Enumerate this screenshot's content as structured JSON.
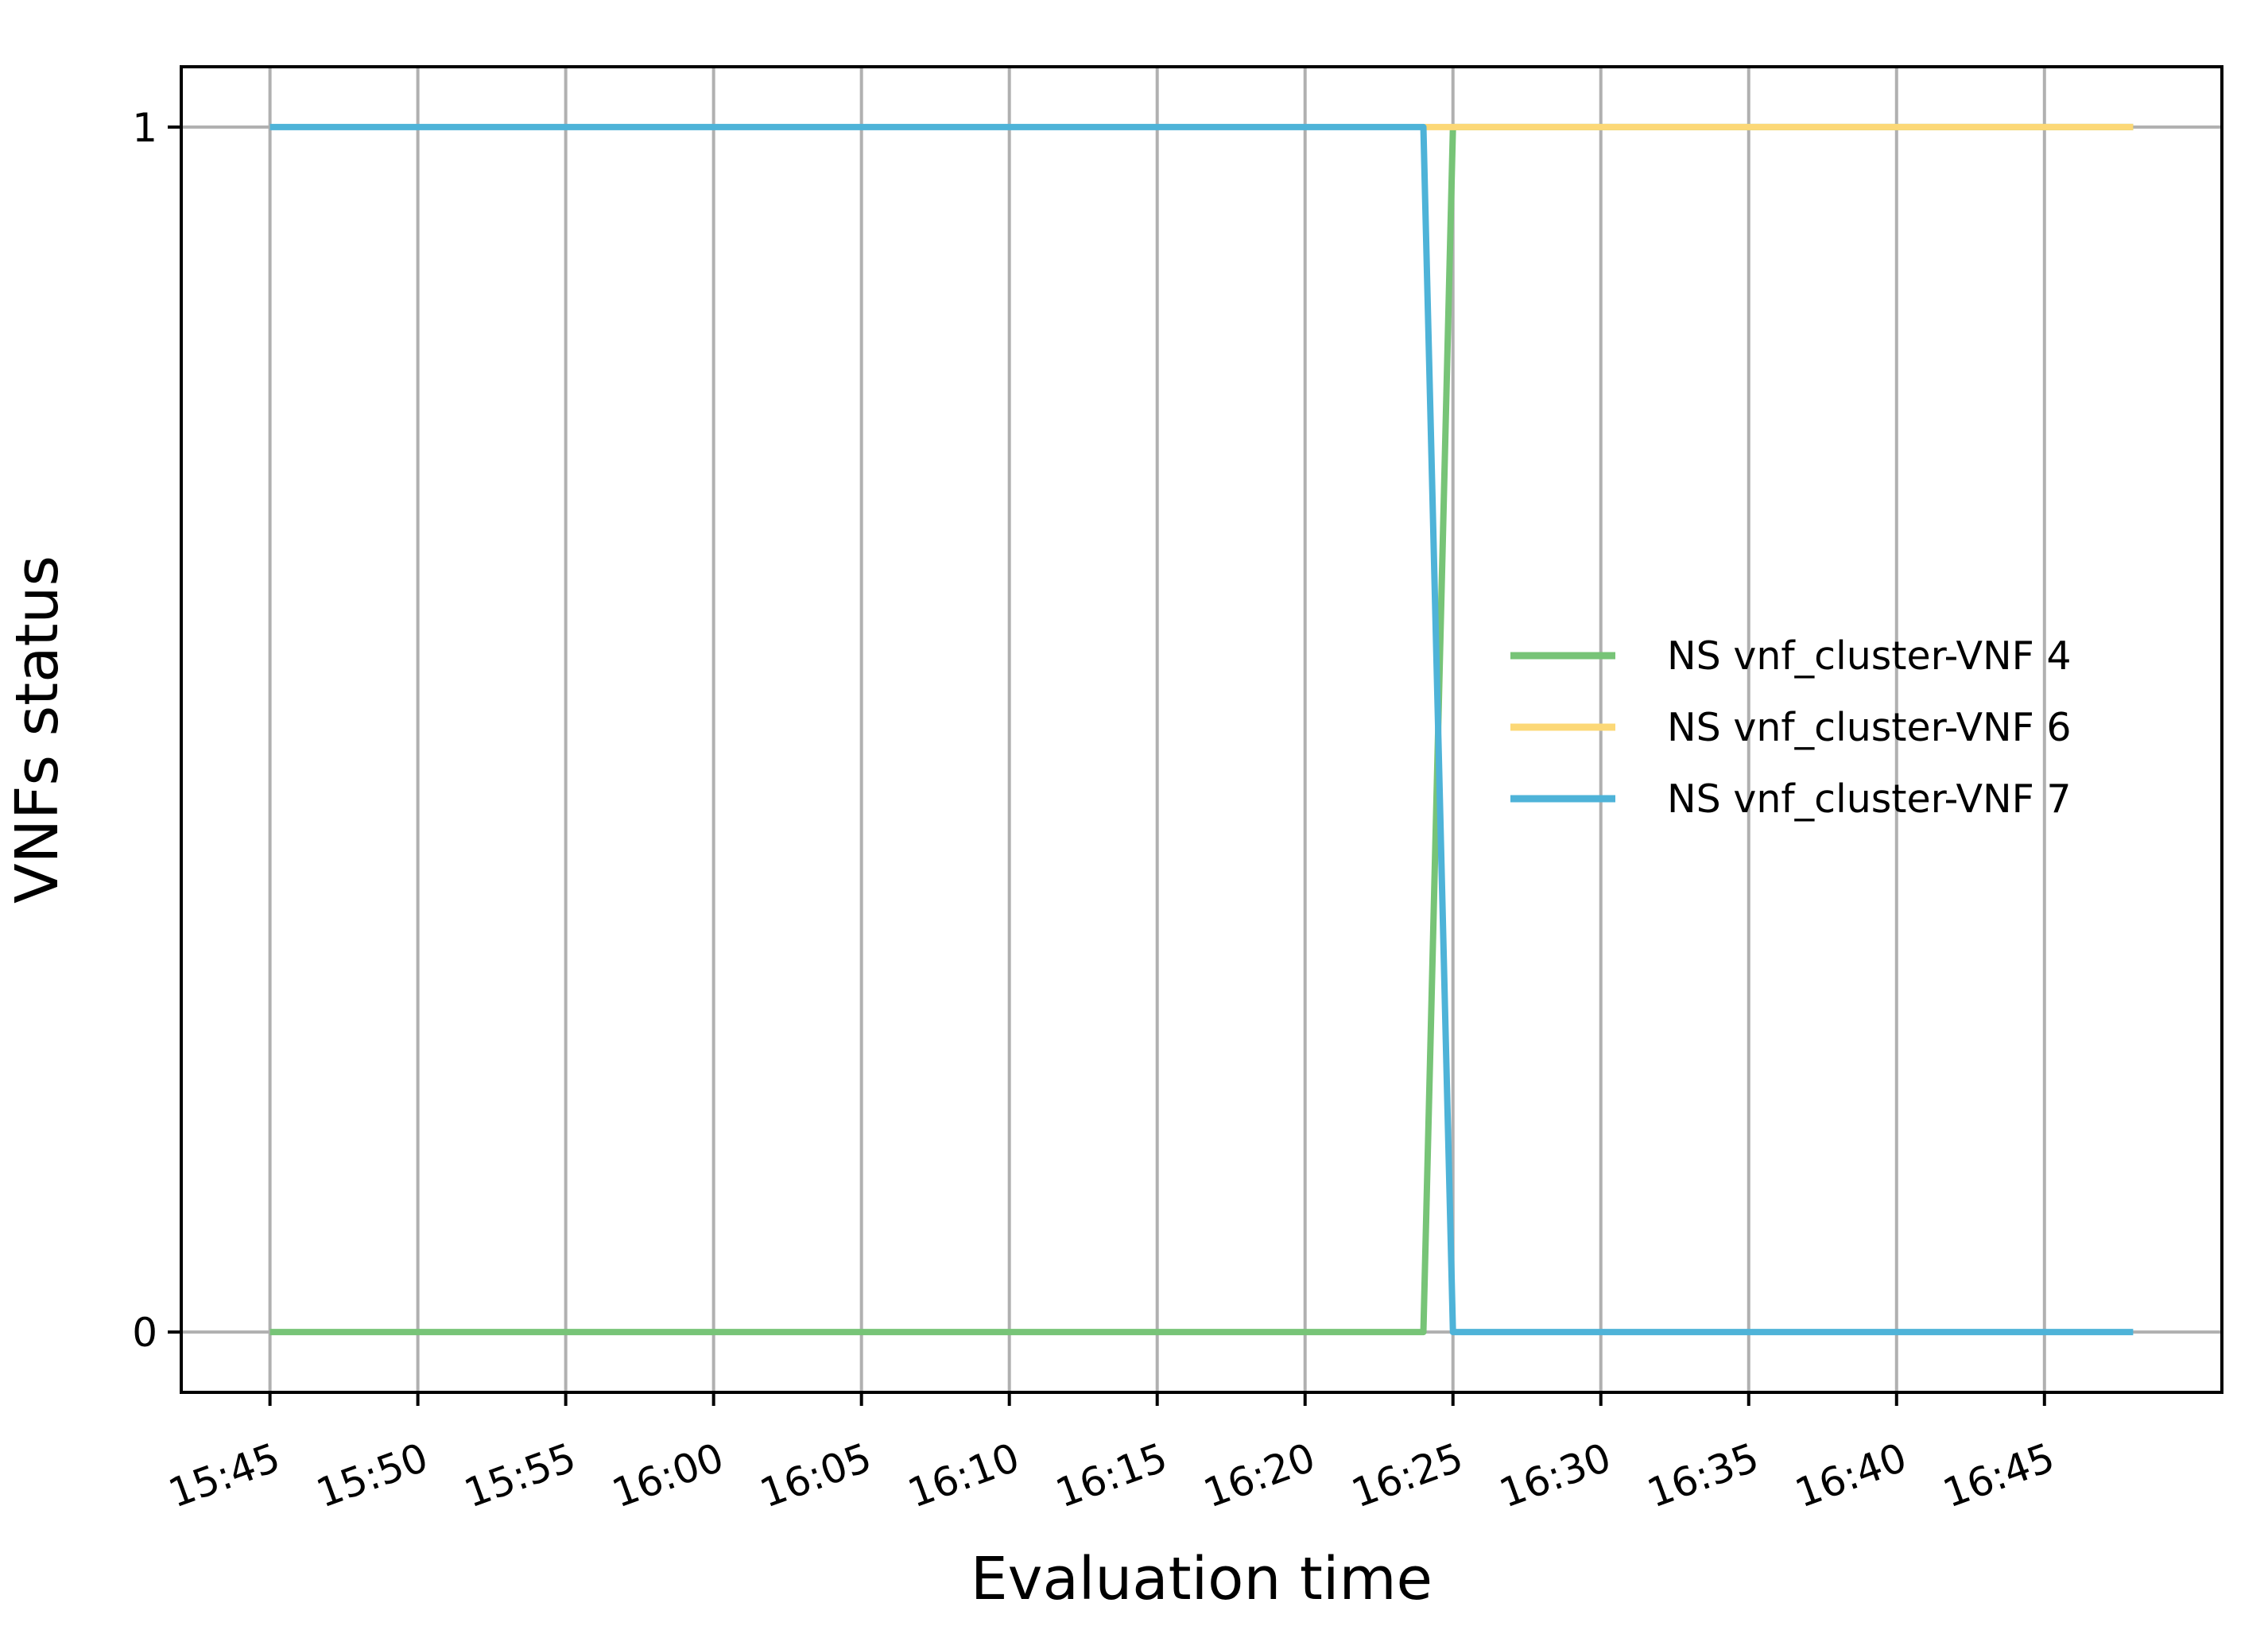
{
  "chart_data": {
    "type": "line",
    "xlabel": "Evaluation time",
    "ylabel": "VNFs status",
    "x_ticks": [
      "15:45",
      "15:50",
      "15:55",
      "16:00",
      "16:05",
      "16:10",
      "16:15",
      "16:20",
      "16:25",
      "16:30",
      "16:35",
      "16:40",
      "16:45"
    ],
    "y_ticks": [
      "0",
      "1"
    ],
    "xlim": [
      "15:42",
      "16:51"
    ],
    "ylim": [
      -0.05,
      1.05
    ],
    "grid": true,
    "legend_position": "center-right",
    "series": [
      {
        "name": "NS vnf_cluster-VNF 4",
        "color": "#77c477",
        "x": [
          "15:45",
          "16:24",
          "16:25",
          "16:48"
        ],
        "values": [
          0,
          0,
          1,
          1
        ]
      },
      {
        "name": "NS vnf_cluster-VNF 6",
        "color": "#fcd877",
        "x": [
          "16:24",
          "16:48"
        ],
        "values": [
          1,
          1
        ]
      },
      {
        "name": "NS vnf_cluster-VNF 7",
        "color": "#4eb3d8",
        "x": [
          "15:45",
          "16:24",
          "16:25",
          "16:48"
        ],
        "values": [
          1,
          1,
          0,
          0
        ]
      }
    ]
  }
}
